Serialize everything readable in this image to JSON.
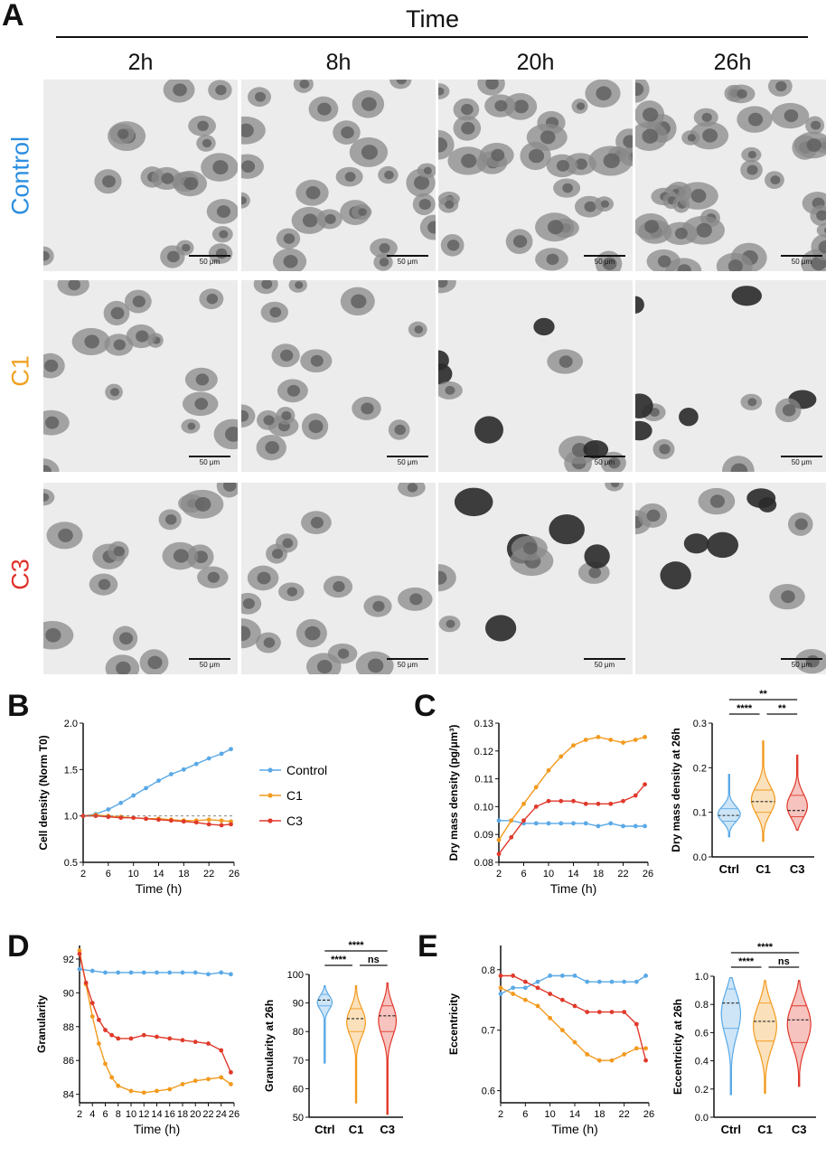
{
  "panel_A": {
    "letter": "A",
    "title": "Time",
    "columns": [
      "2h",
      "8h",
      "20h",
      "26h"
    ],
    "rows": [
      {
        "label": "Control",
        "color": "#2a8de0"
      },
      {
        "label": "C1",
        "color": "#f0a020"
      },
      {
        "label": "C3",
        "color": "#e0302a"
      }
    ],
    "scale_label": "50 μm"
  },
  "panel_letters": {
    "b": "B",
    "c": "C",
    "d": "D",
    "e": "E"
  },
  "colors": {
    "control": "#5aa9e6",
    "c1": "#f29a1e",
    "c3": "#e0392b"
  },
  "chart_data": [
    {
      "id": "B",
      "type": "scatter",
      "ylabel": "Cell density (Norm T0)",
      "xlabel": "Time (h)",
      "xlim": [
        2,
        26
      ],
      "ylim": [
        0.5,
        2.0
      ],
      "xticks": [
        2,
        6,
        10,
        14,
        18,
        22,
        26
      ],
      "yticks": [
        0.5,
        1.0,
        1.5,
        2.0
      ],
      "ytick_labels": [
        "0.5",
        "1.0",
        "1.5",
        "2.0"
      ],
      "legend": [
        "Control",
        "C1",
        "C3"
      ],
      "series": [
        {
          "name": "Control",
          "x": [
            2,
            4,
            6,
            8,
            10,
            12,
            14,
            16,
            18,
            20,
            22,
            24,
            25.5
          ],
          "y": [
            1.0,
            1.02,
            1.07,
            1.14,
            1.22,
            1.3,
            1.38,
            1.45,
            1.5,
            1.56,
            1.62,
            1.67,
            1.72
          ]
        },
        {
          "name": "C1",
          "x": [
            2,
            4,
            6,
            8,
            10,
            12,
            14,
            16,
            18,
            20,
            22,
            24,
            25.5
          ],
          "y": [
            1.0,
            1.01,
            1.0,
            0.99,
            0.98,
            0.97,
            0.97,
            0.96,
            0.95,
            0.95,
            0.96,
            0.95,
            0.94
          ]
        },
        {
          "name": "C3",
          "x": [
            2,
            4,
            6,
            8,
            10,
            12,
            14,
            16,
            18,
            20,
            22,
            24,
            25.5
          ],
          "y": [
            1.0,
            1.0,
            0.99,
            0.98,
            0.98,
            0.97,
            0.96,
            0.95,
            0.94,
            0.93,
            0.91,
            0.9,
            0.91
          ]
        }
      ]
    },
    {
      "id": "C",
      "type": "scatter",
      "ylabel": "Dry mass density (pg/μm³)",
      "xlabel": "Time (h)",
      "xlim": [
        2,
        26
      ],
      "ylim": [
        0.08,
        0.13
      ],
      "xticks": [
        2,
        6,
        10,
        14,
        18,
        22,
        26
      ],
      "yticks": [
        0.08,
        0.09,
        0.1,
        0.11,
        0.12,
        0.13
      ],
      "ytick_labels": [
        "0.08",
        "0.09",
        "0.10",
        "0.11",
        "0.12",
        "0.13"
      ],
      "series": [
        {
          "name": "Control",
          "x": [
            2,
            4,
            6,
            8,
            10,
            12,
            14,
            16,
            18,
            20,
            22,
            24,
            25.5
          ],
          "y": [
            0.095,
            0.095,
            0.094,
            0.094,
            0.094,
            0.094,
            0.094,
            0.094,
            0.093,
            0.094,
            0.093,
            0.093,
            0.093
          ]
        },
        {
          "name": "C1",
          "x": [
            2,
            4,
            6,
            8,
            10,
            12,
            14,
            16,
            18,
            20,
            22,
            24,
            25.5
          ],
          "y": [
            0.088,
            0.095,
            0.101,
            0.107,
            0.113,
            0.118,
            0.122,
            0.124,
            0.125,
            0.124,
            0.123,
            0.124,
            0.125
          ]
        },
        {
          "name": "C3",
          "x": [
            2,
            4,
            6,
            8,
            10,
            12,
            14,
            16,
            18,
            20,
            22,
            24,
            25.5
          ],
          "y": [
            0.083,
            0.089,
            0.095,
            0.1,
            0.102,
            0.102,
            0.102,
            0.101,
            0.101,
            0.101,
            0.102,
            0.104,
            0.108
          ]
        }
      ]
    },
    {
      "id": "C-violin",
      "type": "violin",
      "ylabel": "Dry mass density at 26h",
      "categories": [
        "Ctrl",
        "C1",
        "C3"
      ],
      "ylim": [
        0.0,
        0.3
      ],
      "yticks": [
        0.0,
        0.1,
        0.2,
        0.3
      ],
      "ytick_labels": [
        "0.0",
        "0.1",
        "0.2",
        "0.3"
      ],
      "violins": [
        {
          "name": "Ctrl",
          "min": 0.045,
          "q1": 0.08,
          "median": 0.093,
          "q3": 0.108,
          "max": 0.185,
          "color": "#5aa9e6"
        },
        {
          "name": "C1",
          "min": 0.035,
          "q1": 0.1,
          "median": 0.124,
          "q3": 0.15,
          "max": 0.26,
          "color": "#f29a1e"
        },
        {
          "name": "C3",
          "min": 0.06,
          "q1": 0.09,
          "median": 0.104,
          "q3": 0.138,
          "max": 0.228,
          "color": "#e0392b"
        }
      ],
      "significance": [
        {
          "from": "Ctrl",
          "to": "C3",
          "label": "**"
        },
        {
          "from": "Ctrl",
          "to": "C1",
          "label": "****"
        },
        {
          "from": "C1",
          "to": "C3",
          "label": "**"
        }
      ]
    },
    {
      "id": "D",
      "type": "scatter",
      "ylabel": "Granularity",
      "xlabel": "Time (h)",
      "xlim": [
        2,
        26
      ],
      "ylim": [
        83.5,
        92.8
      ],
      "xticks": [
        2,
        4,
        6,
        8,
        10,
        12,
        14,
        16,
        18,
        20,
        22,
        24,
        26
      ],
      "yticks": [
        84,
        86,
        88,
        90,
        92
      ],
      "ytick_labels": [
        "84",
        "86",
        "88",
        "90",
        "92"
      ],
      "series": [
        {
          "name": "Control",
          "x": [
            2,
            4,
            6,
            8,
            10,
            12,
            14,
            16,
            18,
            20,
            22,
            24,
            25.5
          ],
          "y": [
            91.4,
            91.3,
            91.2,
            91.2,
            91.2,
            91.2,
            91.2,
            91.2,
            91.2,
            91.2,
            91.1,
            91.2,
            91.1
          ]
        },
        {
          "name": "C1",
          "x": [
            2,
            3,
            4,
            5,
            6,
            7,
            8,
            10,
            12,
            14,
            16,
            18,
            20,
            22,
            24,
            25.5
          ],
          "y": [
            92.5,
            90.5,
            88.6,
            87.0,
            85.8,
            85.0,
            84.5,
            84.2,
            84.1,
            84.2,
            84.3,
            84.6,
            84.8,
            84.9,
            85.0,
            84.6
          ]
        },
        {
          "name": "C3",
          "x": [
            2,
            3,
            4,
            5,
            6,
            7,
            8,
            10,
            12,
            14,
            16,
            18,
            20,
            22,
            24,
            25.5
          ],
          "y": [
            92.3,
            90.6,
            89.4,
            88.4,
            87.8,
            87.5,
            87.3,
            87.3,
            87.5,
            87.4,
            87.3,
            87.2,
            87.1,
            87.0,
            86.6,
            85.3
          ]
        }
      ]
    },
    {
      "id": "D-violin",
      "type": "violin",
      "ylabel": "Granularity at 26h",
      "categories": [
        "Ctrl",
        "C1",
        "C3"
      ],
      "ylim": [
        50,
        100
      ],
      "yticks": [
        50,
        60,
        70,
        80,
        90,
        100
      ],
      "ytick_labels": [
        "50",
        "60",
        "70",
        "80",
        "90",
        "100"
      ],
      "violins": [
        {
          "name": "Ctrl",
          "min": 69,
          "q1": 89,
          "median": 91,
          "q3": 93,
          "max": 96,
          "color": "#5aa9e6"
        },
        {
          "name": "C1",
          "min": 55,
          "q1": 80,
          "median": 84.5,
          "q3": 88,
          "max": 96,
          "color": "#f29a1e"
        },
        {
          "name": "C3",
          "min": 51,
          "q1": 80,
          "median": 85.5,
          "q3": 89,
          "max": 97,
          "color": "#e0392b"
        }
      ],
      "significance": [
        {
          "from": "Ctrl",
          "to": "C3",
          "label": "****"
        },
        {
          "from": "Ctrl",
          "to": "C1",
          "label": "****"
        },
        {
          "from": "C1",
          "to": "C3",
          "label": "ns"
        }
      ]
    },
    {
      "id": "E",
      "type": "scatter",
      "ylabel": "Eccentricity",
      "xlabel": "Time (h)",
      "xlim": [
        2,
        26
      ],
      "ylim": [
        0.58,
        0.84
      ],
      "xticks": [
        2,
        6,
        10,
        14,
        18,
        22,
        26
      ],
      "yticks": [
        0.6,
        0.7,
        0.8
      ],
      "ytick_labels": [
        "0.6",
        "0.7",
        "0.8"
      ],
      "series": [
        {
          "name": "Control",
          "x": [
            2,
            4,
            6,
            8,
            10,
            12,
            14,
            16,
            18,
            20,
            22,
            24,
            25.5
          ],
          "y": [
            0.76,
            0.77,
            0.77,
            0.78,
            0.79,
            0.79,
            0.79,
            0.78,
            0.78,
            0.78,
            0.78,
            0.78,
            0.79
          ]
        },
        {
          "name": "C1",
          "x": [
            2,
            4,
            6,
            8,
            10,
            12,
            14,
            16,
            18,
            20,
            22,
            24,
            25.5
          ],
          "y": [
            0.77,
            0.76,
            0.75,
            0.74,
            0.72,
            0.7,
            0.68,
            0.66,
            0.65,
            0.65,
            0.66,
            0.67,
            0.67
          ]
        },
        {
          "name": "C3",
          "x": [
            2,
            4,
            6,
            8,
            10,
            12,
            14,
            16,
            18,
            20,
            22,
            24,
            25.5
          ],
          "y": [
            0.79,
            0.79,
            0.78,
            0.77,
            0.76,
            0.75,
            0.74,
            0.73,
            0.73,
            0.73,
            0.73,
            0.71,
            0.65
          ]
        }
      ]
    },
    {
      "id": "E-violin",
      "type": "violin",
      "ylabel": "Eccentricity at 26h",
      "categories": [
        "Ctrl",
        "C1",
        "C3"
      ],
      "ylim": [
        0.0,
        1.0
      ],
      "yticks": [
        0.0,
        0.2,
        0.4,
        0.6,
        0.8,
        1.0
      ],
      "ytick_labels": [
        "0.0",
        "0.2",
        "0.4",
        "0.6",
        "0.8",
        "1.0"
      ],
      "violins": [
        {
          "name": "Ctrl",
          "min": 0.16,
          "q1": 0.63,
          "median": 0.81,
          "q3": 0.91,
          "max": 0.99,
          "color": "#5aa9e6"
        },
        {
          "name": "C1",
          "min": 0.17,
          "q1": 0.54,
          "median": 0.68,
          "q3": 0.81,
          "max": 0.97,
          "color": "#f29a1e"
        },
        {
          "name": "C3",
          "min": 0.22,
          "q1": 0.53,
          "median": 0.69,
          "q3": 0.79,
          "max": 0.97,
          "color": "#e0392b"
        }
      ],
      "significance": [
        {
          "from": "Ctrl",
          "to": "C3",
          "label": "****"
        },
        {
          "from": "Ctrl",
          "to": "C1",
          "label": "****"
        },
        {
          "from": "C1",
          "to": "C3",
          "label": "ns"
        }
      ]
    }
  ]
}
